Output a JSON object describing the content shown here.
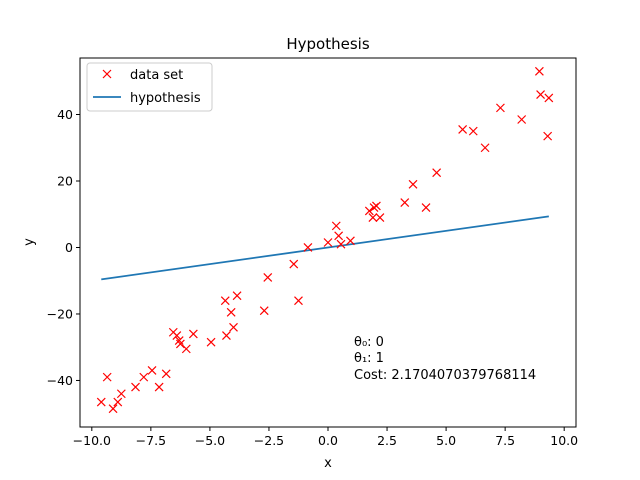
{
  "chart_data": {
    "type": "scatter",
    "title": "Hypothesis",
    "xlabel": "x",
    "ylabel": "y",
    "xlim": [
      -10.5,
      10.5
    ],
    "ylim": [
      -54,
      57
    ],
    "xticks": [
      -10.0,
      -7.5,
      -5.0,
      -2.5,
      0.0,
      2.5,
      5.0,
      7.5,
      10.0
    ],
    "xtick_labels": [
      "−10.0",
      "−7.5",
      "−5.0",
      "−2.5",
      "0.0",
      "2.5",
      "5.0",
      "7.5",
      "10.0"
    ],
    "yticks": [
      -40,
      -20,
      0,
      20,
      40
    ],
    "ytick_labels": [
      "−40",
      "−20",
      "0",
      "20",
      "40"
    ],
    "grid": false,
    "legend_position": "top-left",
    "series": [
      {
        "name": "data set",
        "kind": "scatter",
        "marker": "x",
        "color": "#ff0000",
        "x": [
          -9.6,
          -9.35,
          -9.1,
          -8.9,
          -8.75,
          -8.15,
          -7.8,
          -7.45,
          -7.15,
          -6.85,
          -6.55,
          -6.4,
          -6.3,
          -6.25,
          -6.0,
          -5.7,
          -4.95,
          -4.35,
          -4.3,
          -4.1,
          -4.0,
          -3.85,
          -2.7,
          -2.55,
          -1.45,
          -1.25,
          -0.85,
          0.0,
          0.35,
          0.45,
          0.55,
          0.95,
          1.75,
          1.9,
          1.95,
          2.05,
          2.2,
          3.25,
          3.6,
          4.15,
          4.6,
          5.7,
          6.15,
          6.65,
          7.3,
          8.2,
          8.95,
          9.0,
          9.3,
          9.35
        ],
        "y": [
          -46.5,
          -39,
          -48.5,
          -46.5,
          -44,
          -42,
          -39,
          -37,
          -42,
          -38,
          -25.5,
          -26.5,
          -28,
          -29,
          -30.5,
          -26,
          -28.5,
          -16,
          -26.5,
          -19.5,
          -24,
          -14.5,
          -19,
          -9,
          -5,
          -16,
          0,
          1.5,
          6.5,
          3.5,
          1,
          2,
          11,
          9,
          12,
          12.5,
          9,
          13.5,
          19,
          12,
          22.5,
          35.5,
          35,
          30,
          42,
          38.5,
          53,
          46,
          33.5,
          45
        ]
      },
      {
        "name": "hypothesis",
        "kind": "line",
        "color": "#1f77b4",
        "x": [
          -9.6,
          9.35
        ],
        "y": [
          -9.6,
          9.35
        ]
      }
    ],
    "annotations": [
      "θ₀: 0",
      "θ₁: 1",
      "Cost: 2.1704070379768114"
    ]
  }
}
